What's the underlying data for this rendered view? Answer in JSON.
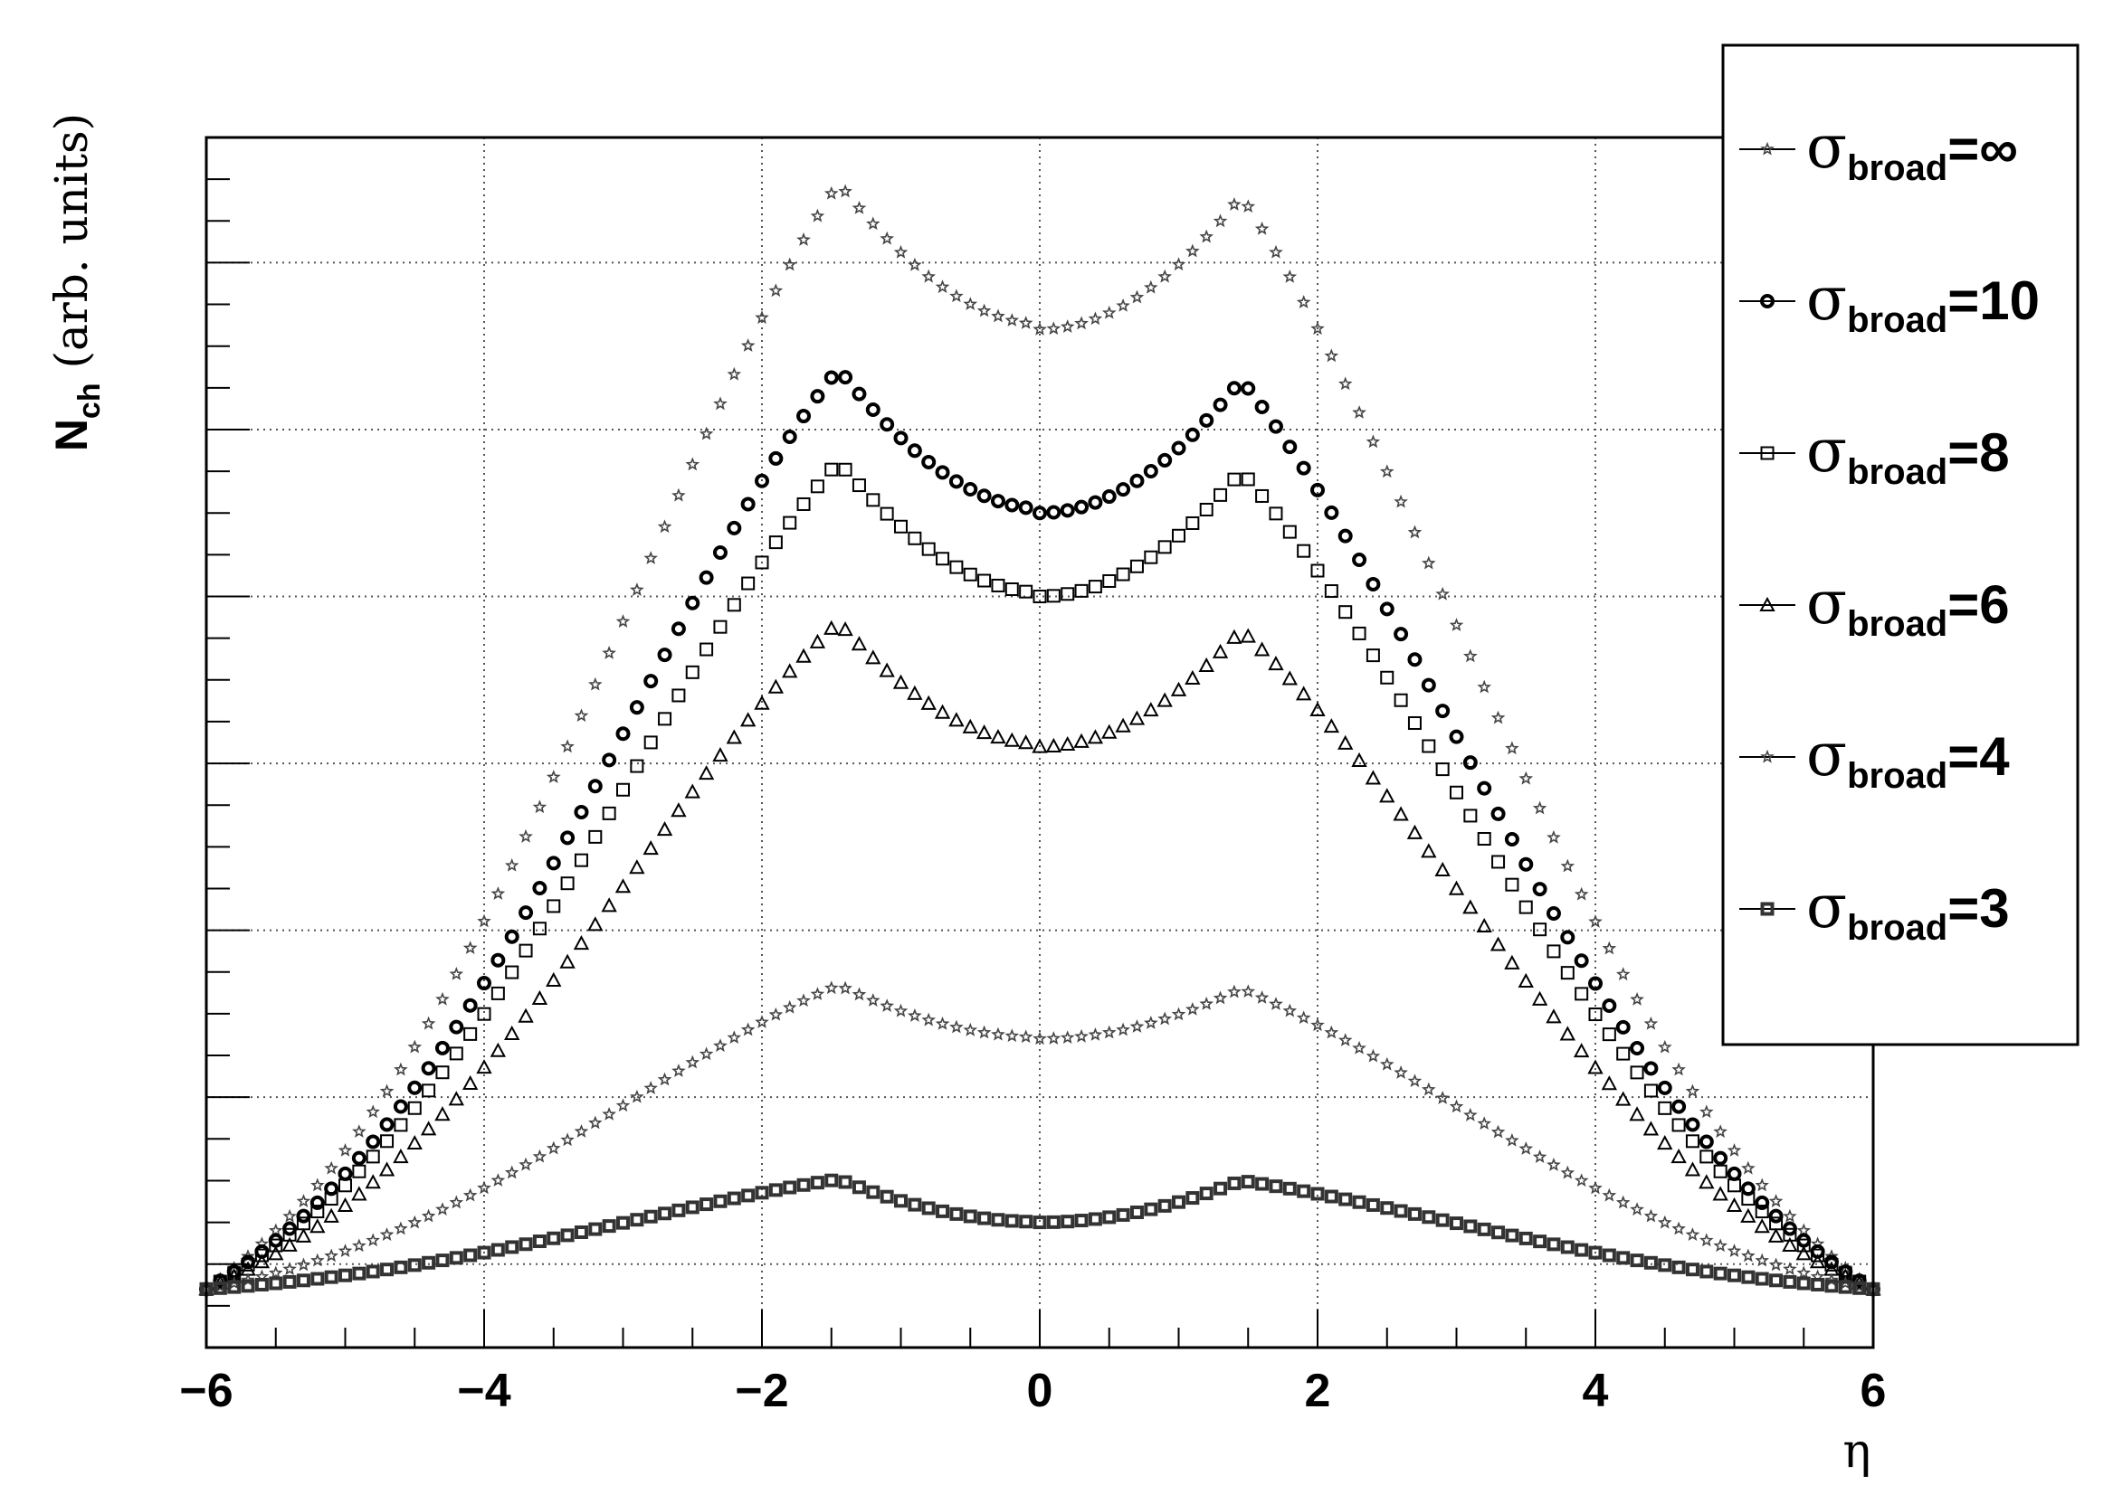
{
  "chart_data": {
    "type": "scatter",
    "title": "",
    "xlabel": "η",
    "ylabel": {
      "main": "N",
      "sub": "ch",
      "rest": " (arb. units)"
    },
    "xlim": [
      -6,
      6
    ],
    "ylim": [
      0,
      14.5
    ],
    "x_ticks": [
      -6,
      -4,
      -2,
      0,
      2,
      4,
      6
    ],
    "x_tick_labels": [
      "−6",
      "−4",
      "−2",
      "0",
      "2",
      "4",
      "6"
    ],
    "grid": true,
    "legend_position": "top-right",
    "legend_prefix": "σ",
    "legend_subscript": "broad",
    "series": [
      {
        "name": "σbroad=∞",
        "label_value": "=∞",
        "marker": "star",
        "peak": 13.8,
        "valley": 12.2
      },
      {
        "name": "σbroad=10",
        "label_value": "=10",
        "marker": "circle-bold",
        "peak": 11.6,
        "valley": 10.0
      },
      {
        "name": "σbroad=8",
        "label_value": "=8",
        "marker": "square",
        "peak": 10.5,
        "valley": 9.0
      },
      {
        "name": "σbroad=6",
        "label_value": "=6",
        "marker": "triangle",
        "peak": 8.6,
        "valley": 7.2
      },
      {
        "name": "σbroad=4",
        "label_value": "=4",
        "marker": "star",
        "peak": 4.3,
        "valley": 3.7
      },
      {
        "name": "σbroad=3",
        "label_value": "=3",
        "marker": "square-bold",
        "peak": 2.0,
        "valley": 1.5
      }
    ],
    "points_per_series": 121,
    "edge_value": 0.7
  }
}
